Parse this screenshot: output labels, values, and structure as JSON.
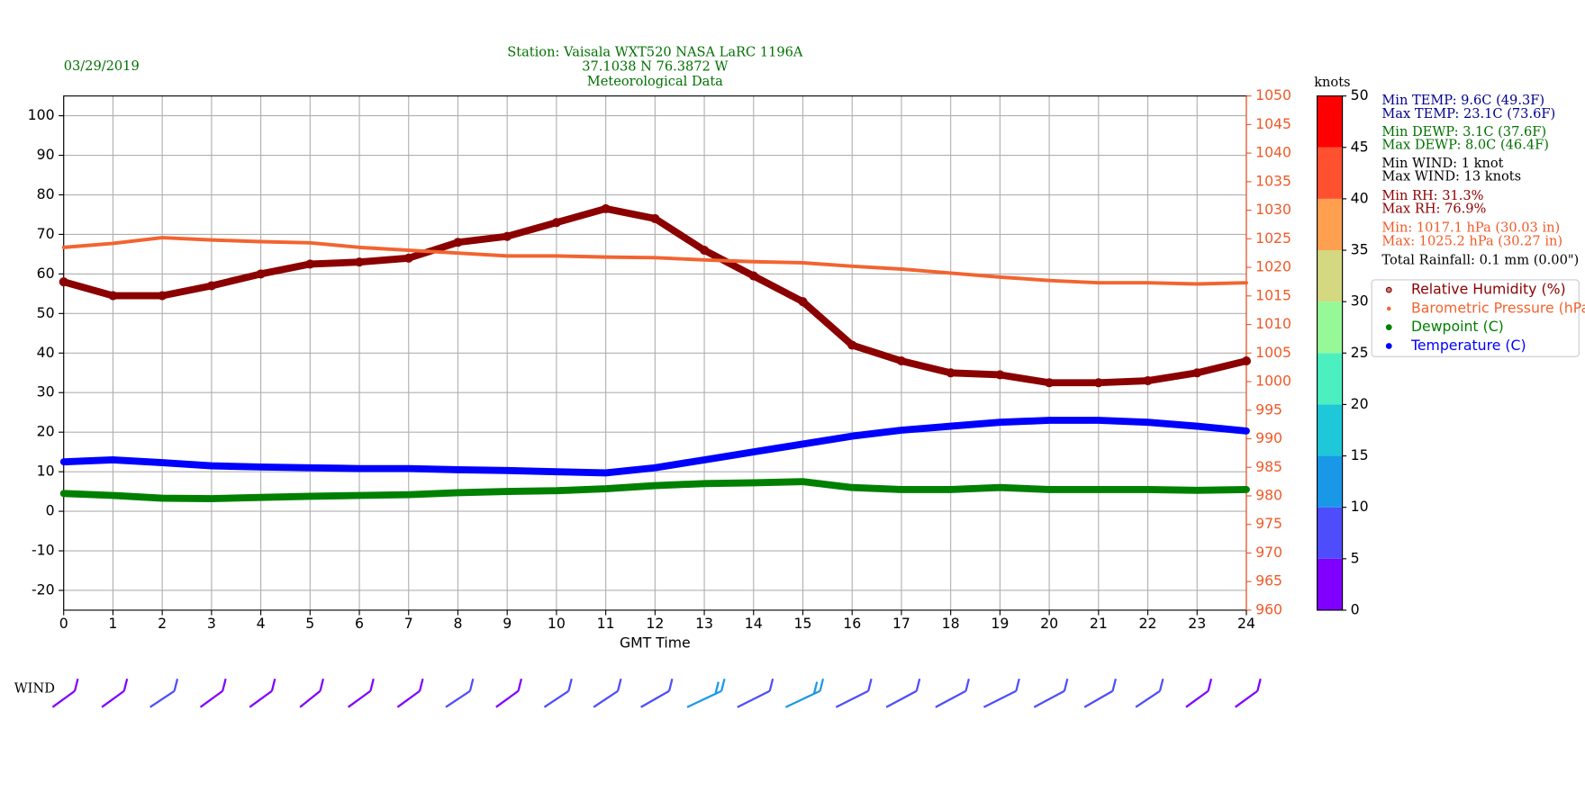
{
  "chart_data": {
    "type": "line",
    "date": "03/29/2019",
    "title": [
      "Station:  Vaisala WXT520  NASA LaRC 1196A",
      "37.1038 N 76.3872 W",
      "Meteorological Data"
    ],
    "title_color": "#007000",
    "x_label": "GMT Time",
    "x": [
      0,
      1,
      2,
      3,
      4,
      5,
      6,
      7,
      8,
      9,
      10,
      11,
      12,
      13,
      14,
      15,
      16,
      17,
      18,
      19,
      20,
      21,
      22,
      23,
      24
    ],
    "xlim": [
      0,
      24
    ],
    "xticks": [
      0,
      1,
      2,
      3,
      4,
      5,
      6,
      7,
      8,
      9,
      10,
      11,
      12,
      13,
      14,
      15,
      16,
      17,
      18,
      19,
      20,
      21,
      22,
      23,
      24
    ],
    "ylim": [
      -25,
      105
    ],
    "yticks": [
      -20,
      -10,
      0,
      10,
      20,
      30,
      40,
      50,
      60,
      70,
      80,
      90,
      100
    ],
    "y2lim": [
      960,
      1050
    ],
    "y2ticks": [
      960,
      965,
      970,
      975,
      980,
      985,
      990,
      995,
      1000,
      1005,
      1010,
      1015,
      1020,
      1025,
      1030,
      1035,
      1040,
      1045,
      1050
    ],
    "y2_color": "#f05a28",
    "grid": true,
    "legend": "right",
    "series": [
      {
        "name": "Relative Humidity (%)",
        "color": "#8b0000",
        "marker": "circle",
        "axis": "y",
        "values": [
          58,
          54.5,
          54.5,
          57,
          60,
          62.5,
          63,
          64,
          68,
          69.5,
          73,
          76.5,
          74,
          66,
          59.5,
          53,
          42,
          38,
          35,
          34.5,
          32.5,
          32.5,
          33,
          35,
          38
        ]
      },
      {
        "name": "Barometric Pressure (hPa)",
        "color": "#f26430",
        "axis": "y2",
        "values": [
          1023.5,
          1024.2,
          1025.2,
          1024.8,
          1024.5,
          1024.3,
          1023.5,
          1023,
          1022.5,
          1022,
          1022,
          1021.8,
          1021.7,
          1021.3,
          1021,
          1020.8,
          1020.2,
          1019.7,
          1019,
          1018.3,
          1017.7,
          1017.3,
          1017.3,
          1017.1,
          1017.3
        ]
      },
      {
        "name": "Dewpoint (C)",
        "color": "#008000",
        "axis": "y",
        "values": [
          4.5,
          4,
          3.3,
          3.2,
          3.5,
          3.8,
          4,
          4.2,
          4.7,
          5,
          5.2,
          5.7,
          6.5,
          7,
          7.2,
          7.5,
          6,
          5.5,
          5.5,
          6,
          5.5,
          5.5,
          5.5,
          5.3,
          5.5
        ]
      },
      {
        "name": "Temperature (C)",
        "color": "#0000ff",
        "axis": "y",
        "values": [
          12.5,
          13,
          12.3,
          11.5,
          11.2,
          11,
          10.8,
          10.8,
          10.5,
          10.3,
          10,
          9.7,
          11,
          13,
          15,
          17,
          19,
          20.5,
          21.5,
          22.5,
          23,
          23,
          22.5,
          21.5,
          20.3
        ]
      }
    ],
    "annotations": [
      {
        "text": "Min TEMP: 9.6C (49.3F)",
        "color": "#00008b"
      },
      {
        "text": "Max TEMP: 23.1C (73.6F)",
        "color": "#00008b"
      },
      {
        "text": "Min DEWP: 3.1C (37.6F)",
        "color": "#007000"
      },
      {
        "text": "Max DEWP: 8.0C (46.4F)",
        "color": "#007000"
      },
      {
        "text": "Min WIND: 1 knot",
        "color": "#000000"
      },
      {
        "text": "Max WIND: 13 knots",
        "color": "#000000"
      },
      {
        "text": "Min RH: 31.3%",
        "color": "#8b0000"
      },
      {
        "text": "Max RH: 76.9%",
        "color": "#8b0000"
      },
      {
        "text": "Min: 1017.1 hPa (30.03 in)",
        "color": "#f05a28"
      },
      {
        "text": "Max: 1025.2 hPa (30.27 in)",
        "color": "#f05a28"
      },
      {
        "text": "Total Rainfall: 0.1 mm (0.00\")",
        "color": "#000000"
      }
    ],
    "wind": {
      "label": "WIND",
      "values": [
        4,
        4,
        5,
        4,
        4,
        3,
        4,
        4,
        5,
        4,
        5,
        5,
        7,
        10,
        9,
        10,
        9,
        8,
        8,
        9,
        8,
        7,
        5,
        4,
        4
      ]
    },
    "colorbar": {
      "label": "knots",
      "ticks": [
        0,
        5,
        10,
        15,
        20,
        25,
        30,
        35,
        40,
        45,
        50
      ],
      "colors": [
        "#7f00ff",
        "#4e4dfc",
        "#1a98e8",
        "#1ec8d8",
        "#4cf0c0",
        "#96f896",
        "#d4d880",
        "#ffa050",
        "#ff5030",
        "#ff0000"
      ]
    }
  }
}
